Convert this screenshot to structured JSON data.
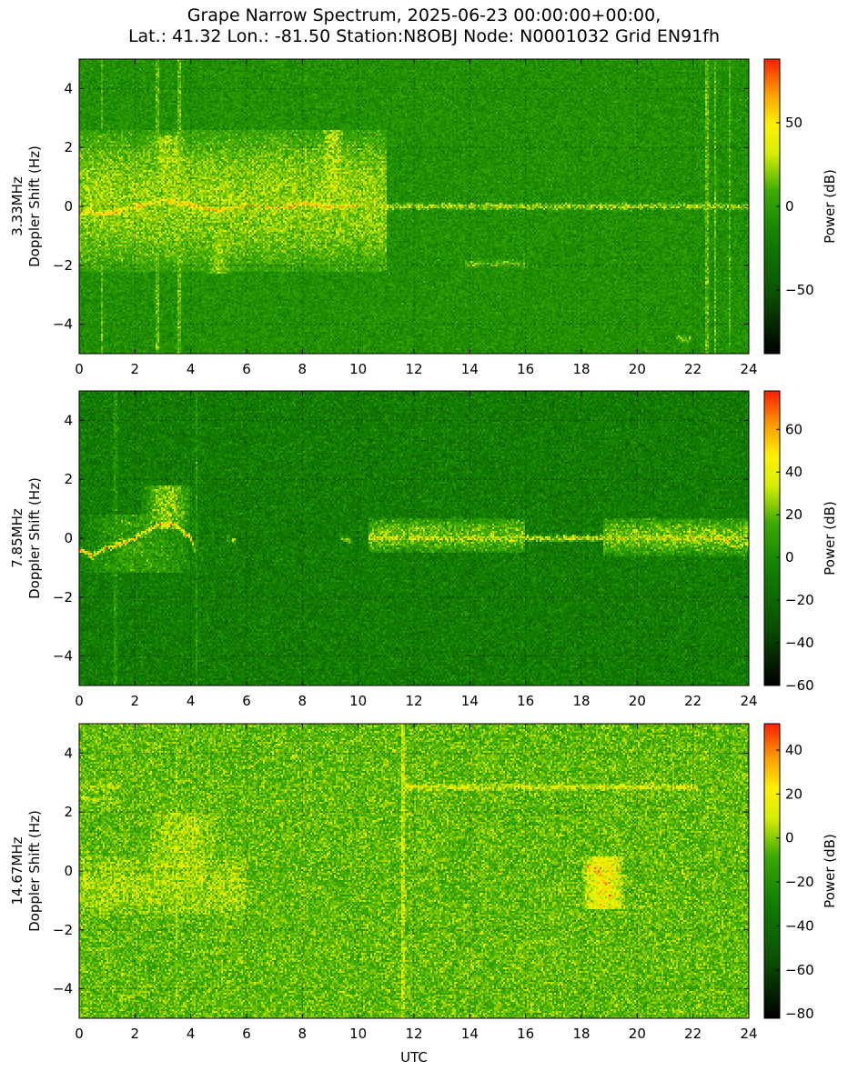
{
  "title_line1": "Grape Narrow Spectrum, 2025-06-23 00:00:00+00:00,",
  "title_line2": "Lat.: 41.32 Lon.: -81.50 Station:N8OBJ Node: N0001032 Grid EN91fh",
  "colors": {
    "background": "#ffffff",
    "colormap": [
      "#000000",
      "#0a5a00",
      "#1a8c00",
      "#55b000",
      "#d8ee00",
      "#ffee00",
      "#ffaa00",
      "#ff3300"
    ]
  },
  "chart_data": [
    {
      "type": "heatmap",
      "ylabel_line1": "3.33MHz",
      "ylabel_line2": "Doppler Shift (Hz)",
      "xlabel": "",
      "colorbar_label": "Power (dB)",
      "xlim": [
        0,
        24
      ],
      "ylim": [
        -5,
        5
      ],
      "xticks": [
        0,
        2,
        4,
        6,
        8,
        10,
        12,
        14,
        16,
        18,
        20,
        22,
        24
      ],
      "yticks": [
        -4,
        -2,
        0,
        2,
        4
      ],
      "grid": true,
      "clim": [
        -88,
        88
      ],
      "colorbar_ticks": [
        -50,
        0,
        50
      ],
      "noise_db": -8,
      "features": [
        {
          "type": "band",
          "x0": 0,
          "x1": 11,
          "y0": -2.2,
          "y1": 2.6,
          "db": 30
        },
        {
          "type": "trace",
          "points": [
            [
              0,
              -0.2
            ],
            [
              1,
              -0.25
            ],
            [
              2,
              0
            ],
            [
              3,
              0.2
            ],
            [
              4,
              0.05
            ],
            [
              5,
              -0.15
            ],
            [
              6,
              0.05
            ],
            [
              7,
              -0.05
            ],
            [
              8,
              0.1
            ],
            [
              9,
              0
            ],
            [
              10,
              0
            ]
          ],
          "db": 80
        },
        {
          "type": "trace",
          "points": [
            [
              10,
              0
            ],
            [
              24,
              0
            ]
          ],
          "db": 45
        },
        {
          "type": "bump",
          "x0": 2.5,
          "x1": 4,
          "y0": 0.8,
          "y1": 2.4,
          "db": 35
        },
        {
          "type": "bump",
          "x0": 8.6,
          "x1": 9.6,
          "y0": 0.5,
          "y1": 2.6,
          "db": 40
        },
        {
          "type": "bump",
          "x0": 4.5,
          "x1": 5.5,
          "y0": -2.3,
          "y1": -0.8,
          "db": 30
        },
        {
          "type": "trace",
          "points": [
            [
              13.8,
              -1.95
            ],
            [
              16,
              -1.95
            ]
          ],
          "db": 28
        },
        {
          "type": "trace",
          "points": [
            [
              21.4,
              -4.5
            ],
            [
              22,
              -4.5
            ]
          ],
          "db": 30
        },
        {
          "type": "vline",
          "x": 0.8,
          "db": 18
        },
        {
          "type": "vline",
          "x": 2.8,
          "db": 22
        },
        {
          "type": "vline",
          "x": 3.6,
          "db": 22
        },
        {
          "type": "vline",
          "x": 22.5,
          "db": 22
        },
        {
          "type": "vline",
          "x": 22.8,
          "db": 20
        },
        {
          "type": "vline",
          "x": 23.3,
          "db": 18
        }
      ]
    },
    {
      "type": "heatmap",
      "ylabel_line1": "7.85MHz",
      "ylabel_line2": "Doppler Shift (Hz)",
      "xlabel": "",
      "colorbar_label": "Power (dB)",
      "xlim": [
        0,
        24
      ],
      "ylim": [
        -5,
        5
      ],
      "xticks": [
        0,
        2,
        4,
        6,
        8,
        10,
        12,
        14,
        16,
        18,
        20,
        22,
        24
      ],
      "yticks": [
        -4,
        -2,
        0,
        2,
        4
      ],
      "grid": true,
      "clim": [
        -60,
        78
      ],
      "colorbar_ticks": [
        -60,
        -40,
        -20,
        0,
        20,
        40,
        60
      ],
      "noise_db": -8,
      "features": [
        {
          "type": "trace",
          "points": [
            [
              0,
              -0.4
            ],
            [
              0.5,
              -0.6
            ],
            [
              1,
              -0.3
            ],
            [
              1.5,
              -0.2
            ],
            [
              2,
              0
            ],
            [
              2.5,
              0.3
            ],
            [
              3,
              0.5
            ],
            [
              3.5,
              0.4
            ],
            [
              4,
              0
            ],
            [
              4.2,
              -0.6
            ]
          ],
          "db": 70
        },
        {
          "type": "bump",
          "x0": 2.2,
          "x1": 4.1,
          "y0": 0.3,
          "y1": 1.8,
          "db": 35
        },
        {
          "type": "bump",
          "x0": 0,
          "x1": 4.4,
          "y0": -1.2,
          "y1": 0.8,
          "db": 15
        },
        {
          "type": "trace",
          "points": [
            [
              5.3,
              0
            ],
            [
              5.6,
              -0.1
            ]
          ],
          "db": 40
        },
        {
          "type": "trace",
          "points": [
            [
              9.4,
              0
            ],
            [
              9.8,
              -0.1
            ]
          ],
          "db": 40
        },
        {
          "type": "trace",
          "points": [
            [
              10.4,
              0
            ],
            [
              24,
              0
            ]
          ],
          "db": 55
        },
        {
          "type": "band",
          "x0": 10.4,
          "x1": 16,
          "y0": -0.5,
          "y1": 0.7,
          "db": 28
        },
        {
          "type": "band",
          "x0": 18.8,
          "x1": 24,
          "y0": -0.6,
          "y1": 0.7,
          "db": 30
        },
        {
          "type": "trace",
          "points": [
            [
              22.5,
              0.3
            ],
            [
              23,
              0
            ],
            [
              23.5,
              -0.3
            ],
            [
              24,
              -0.2
            ]
          ],
          "db": 60
        },
        {
          "type": "vline",
          "x": 1.3,
          "db": 10
        },
        {
          "type": "vline",
          "x": 4.2,
          "db": 12
        }
      ]
    },
    {
      "type": "heatmap",
      "ylabel_line1": "14.67MHz",
      "ylabel_line2": "Doppler Shift (Hz)",
      "xlabel": "UTC",
      "colorbar_label": "Power (dB)",
      "xlim": [
        0,
        24
      ],
      "ylim": [
        -5,
        5
      ],
      "xticks": [
        0,
        2,
        4,
        6,
        8,
        10,
        12,
        14,
        16,
        18,
        20,
        22,
        24
      ],
      "yticks": [
        -4,
        -2,
        0,
        2,
        4
      ],
      "grid": true,
      "clim": [
        -82,
        52
      ],
      "colorbar_ticks": [
        -80,
        -60,
        -40,
        -20,
        0,
        20,
        40
      ],
      "noise_db": -5,
      "features": [
        {
          "type": "trace",
          "points": [
            [
              0,
              2.85
            ],
            [
              1.5,
              2.85
            ]
          ],
          "db": 12
        },
        {
          "type": "trace",
          "points": [
            [
              0,
              2.5
            ],
            [
              0.6,
              2.4
            ],
            [
              1,
              2.5
            ],
            [
              1.5,
              2.2
            ]
          ],
          "db": 10
        },
        {
          "type": "bump",
          "x0": 2.5,
          "x1": 5,
          "y0": -0.5,
          "y1": 2,
          "db": 8
        },
        {
          "type": "band",
          "x0": 0,
          "x1": 6,
          "y0": -1.5,
          "y1": 0.5,
          "db": 5
        },
        {
          "type": "trace",
          "points": [
            [
              11.7,
              2.85
            ],
            [
              22.2,
              2.85
            ]
          ],
          "db": 18
        },
        {
          "type": "vline",
          "x": 11.6,
          "db": 12
        },
        {
          "type": "vline",
          "x": 3.5,
          "db": 5
        },
        {
          "type": "trace",
          "points": [
            [
              18.2,
              0.1
            ],
            [
              18.6,
              0
            ],
            [
              18.9,
              -0.5
            ],
            [
              19.1,
              -1.2
            ]
          ],
          "db": 48
        },
        {
          "type": "bump",
          "x0": 18,
          "x1": 19.6,
          "y0": -1.3,
          "y1": 0.5,
          "db": 25
        },
        {
          "type": "trace",
          "points": [
            [
              21.6,
              0
            ],
            [
              21.8,
              -0.3
            ]
          ],
          "db": 30
        }
      ]
    }
  ]
}
